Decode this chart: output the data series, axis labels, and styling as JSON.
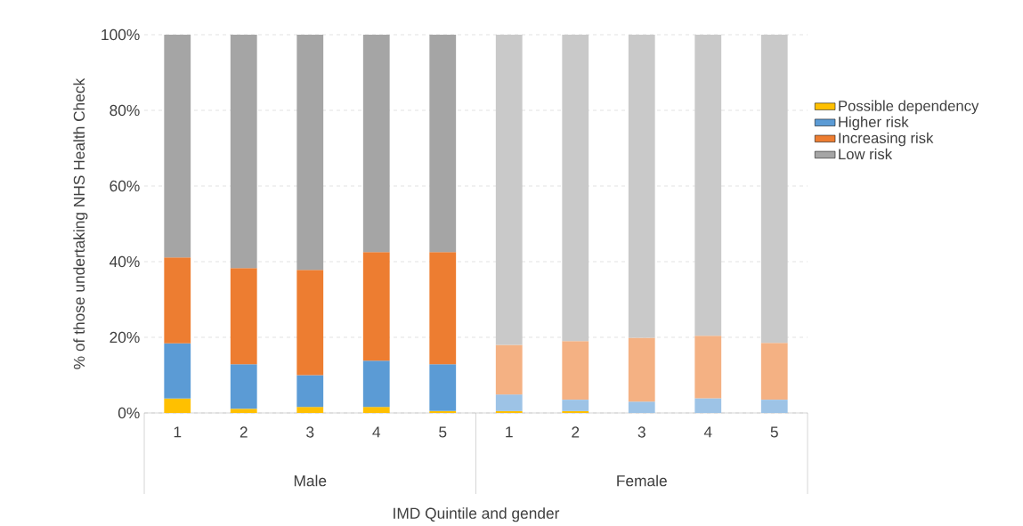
{
  "chart_data": {
    "type": "bar",
    "stacked": true,
    "xlabel": "IMD Quintile and gender",
    "ylabel": "% of those undertaking NHS Health Check",
    "categories": [
      "1",
      "2",
      "3",
      "4",
      "5",
      "1",
      "2",
      "3",
      "4",
      "5"
    ],
    "annotations": [
      "Male",
      "Female"
    ],
    "series": [
      {
        "name": "Possible dependency",
        "color": "#ffc000",
        "colors": [
          "#ffc000",
          "#ffc000",
          "#ffc000",
          "#ffc000",
          "#ffc000",
          "#ffc000",
          "#ffc000",
          "#ffc000",
          "#ffc000",
          "#ffc000"
        ],
        "values": [
          3.8,
          1.1,
          1.6,
          1.6,
          0.5,
          0.5,
          0.5,
          0,
          0,
          0
        ]
      },
      {
        "name": "Higher risk",
        "color": "#5b9bd5",
        "colors": [
          "#5b9bd5",
          "#5b9bd5",
          "#5b9bd5",
          "#5b9bd5",
          "#5b9bd5",
          "#9dc3e6",
          "#9dc3e6",
          "#9dc3e6",
          "#9dc3e6",
          "#9dc3e6"
        ],
        "values": [
          14.6,
          11.8,
          8.4,
          12.2,
          12.4,
          4.4,
          3.0,
          3.0,
          3.9,
          3.5
        ]
      },
      {
        "name": "Increasing risk",
        "color": "#ed7d31",
        "colors": [
          "#ed7d31",
          "#ed7d31",
          "#ed7d31",
          "#ed7d31",
          "#ed7d31",
          "#f4b183",
          "#f4b183",
          "#f4b183",
          "#f4b183",
          "#f4b183"
        ],
        "values": [
          22.7,
          25.4,
          27.8,
          28.7,
          29.6,
          13.1,
          15.5,
          16.9,
          16.5,
          15.0
        ]
      },
      {
        "name": "Low risk",
        "color": "#a5a5a5",
        "colors": [
          "#a5a5a5",
          "#a5a5a5",
          "#a5a5a5",
          "#a5a5a5",
          "#a5a5a5",
          "#c9c9c9",
          "#c9c9c9",
          "#c9c9c9",
          "#c9c9c9",
          "#c9c9c9"
        ],
        "values": [
          58.9,
          61.7,
          62.2,
          57.5,
          57.5,
          82.0,
          81.0,
          80.1,
          79.6,
          81.5
        ]
      }
    ],
    "ylim": [
      0,
      100
    ],
    "yticks": [
      {
        "value": 0,
        "label": "0%"
      },
      {
        "value": 20,
        "label": "20%"
      },
      {
        "value": 40,
        "label": "40%"
      },
      {
        "value": 60,
        "label": "60%"
      },
      {
        "value": 80,
        "label": "80%"
      },
      {
        "value": 100,
        "label": "100%"
      }
    ],
    "grid": "y",
    "legend": "right"
  }
}
